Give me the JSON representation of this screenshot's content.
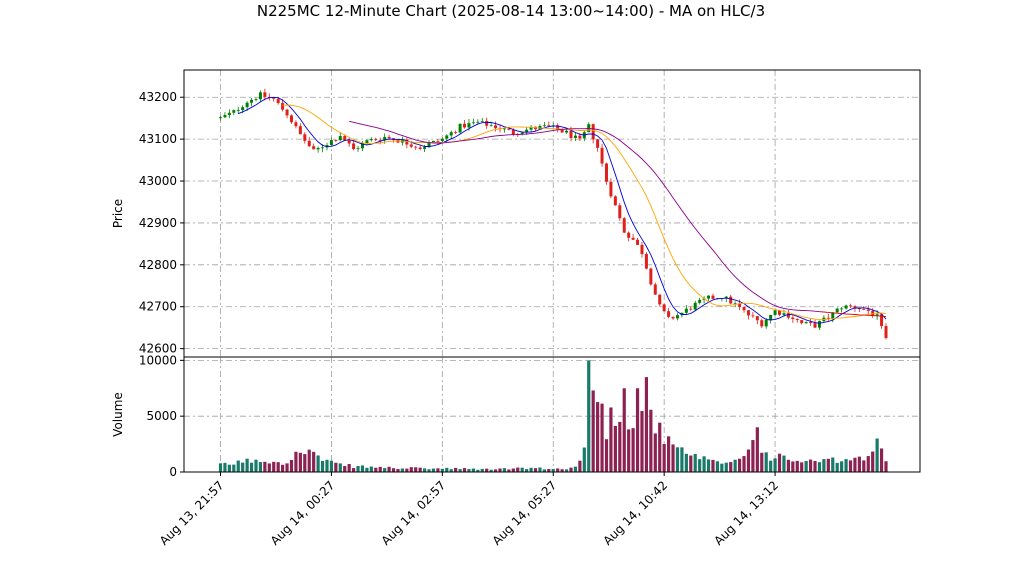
{
  "chart_data": {
    "type": "candlestick",
    "title": "N225MC 12-Minute Chart (2025-08-14 13:00~14:00) - MA on HLC/3",
    "price_panel": {
      "ylabel": "Price",
      "ylim": [
        42580,
        43265
      ],
      "yticks": [
        42600,
        42700,
        42800,
        42900,
        43000,
        43100,
        43200
      ],
      "grid": true
    },
    "volume_panel": {
      "ylabel": "Volume",
      "ylim": [
        0,
        10300
      ],
      "yticks": [
        0,
        5000,
        10000
      ],
      "grid": true
    },
    "xticks": [
      "Aug 13, 21:57",
      "Aug 14, 00:27",
      "Aug 14, 02:57",
      "Aug 14, 05:27",
      "Aug 14, 10:42",
      "Aug 14, 13:12"
    ],
    "xtick_bar_index": [
      0,
      25,
      50,
      75,
      100,
      125
    ],
    "n_bars": 151,
    "colors": {
      "up": "#008000",
      "down": "#e0201b",
      "volume_up": "#1a7a6a",
      "volume_down": "#8b2252",
      "ma_short": "#0000dd",
      "ma_mid": "#ffa500",
      "ma_long": "#8b008b",
      "ma_tail": "#dd0000",
      "grid": "#a0a0a0"
    },
    "price_path": [
      [
        0,
        43150
      ],
      [
        3,
        43165
      ],
      [
        6,
        43190
      ],
      [
        9,
        43205
      ],
      [
        12,
        43195
      ],
      [
        15,
        43160
      ],
      [
        18,
        43110
      ],
      [
        21,
        43070
      ],
      [
        24,
        43090
      ],
      [
        27,
        43110
      ],
      [
        30,
        43075
      ],
      [
        33,
        43095
      ],
      [
        37,
        43105
      ],
      [
        41,
        43095
      ],
      [
        45,
        43080
      ],
      [
        50,
        43100
      ],
      [
        54,
        43130
      ],
      [
        58,
        43140
      ],
      [
        62,
        43130
      ],
      [
        66,
        43115
      ],
      [
        70,
        43125
      ],
      [
        74,
        43130
      ],
      [
        78,
        43115
      ],
      [
        81,
        43095
      ],
      [
        83,
        43130
      ],
      [
        85,
        43080
      ],
      [
        87,
        43000
      ],
      [
        89,
        42940
      ],
      [
        91,
        42880
      ],
      [
        93,
        42860
      ],
      [
        95,
        42830
      ],
      [
        97,
        42760
      ],
      [
        99,
        42700
      ],
      [
        101,
        42670
      ],
      [
        104,
        42685
      ],
      [
        107,
        42705
      ],
      [
        110,
        42720
      ],
      [
        113,
        42725
      ],
      [
        116,
        42705
      ],
      [
        119,
        42680
      ],
      [
        122,
        42660
      ],
      [
        125,
        42690
      ],
      [
        128,
        42680
      ],
      [
        131,
        42660
      ],
      [
        134,
        42655
      ],
      [
        137,
        42675
      ],
      [
        140,
        42700
      ],
      [
        143,
        42700
      ],
      [
        146,
        42690
      ],
      [
        148,
        42675
      ],
      [
        150,
        42620
      ]
    ],
    "volume_path": [
      [
        0,
        600
      ],
      [
        8,
        1100
      ],
      [
        14,
        900
      ],
      [
        17,
        1500
      ],
      [
        20,
        2000
      ],
      [
        23,
        1000
      ],
      [
        26,
        700
      ],
      [
        30,
        500
      ],
      [
        40,
        350
      ],
      [
        50,
        300
      ],
      [
        60,
        250
      ],
      [
        70,
        350
      ],
      [
        75,
        250
      ],
      [
        80,
        400
      ],
      [
        82,
        2200
      ],
      [
        83,
        9000
      ],
      [
        85,
        6500
      ],
      [
        87,
        4000
      ],
      [
        89,
        5500
      ],
      [
        91,
        6500
      ],
      [
        93,
        3500
      ],
      [
        95,
        5000
      ],
      [
        97,
        6000
      ],
      [
        99,
        3500
      ],
      [
        101,
        2500
      ],
      [
        104,
        1800
      ],
      [
        108,
        1200
      ],
      [
        112,
        800
      ],
      [
        116,
        1000
      ],
      [
        119,
        2000
      ],
      [
        121,
        3000
      ],
      [
        123,
        1500
      ],
      [
        127,
        1200
      ],
      [
        130,
        1000
      ],
      [
        134,
        900
      ],
      [
        138,
        1000
      ],
      [
        142,
        1100
      ],
      [
        146,
        1200
      ],
      [
        148,
        2500
      ],
      [
        150,
        1100
      ]
    ],
    "volume_spikes": [
      [
        20,
        2000
      ],
      [
        60,
        300
      ],
      [
        83,
        10000
      ],
      [
        91,
        7500
      ],
      [
        94,
        7500
      ],
      [
        96,
        8500
      ],
      [
        121,
        4000
      ],
      [
        148,
        3000
      ]
    ],
    "ma_short_window": 5,
    "ma_mid_window": 15,
    "ma_long_start": 30
  }
}
